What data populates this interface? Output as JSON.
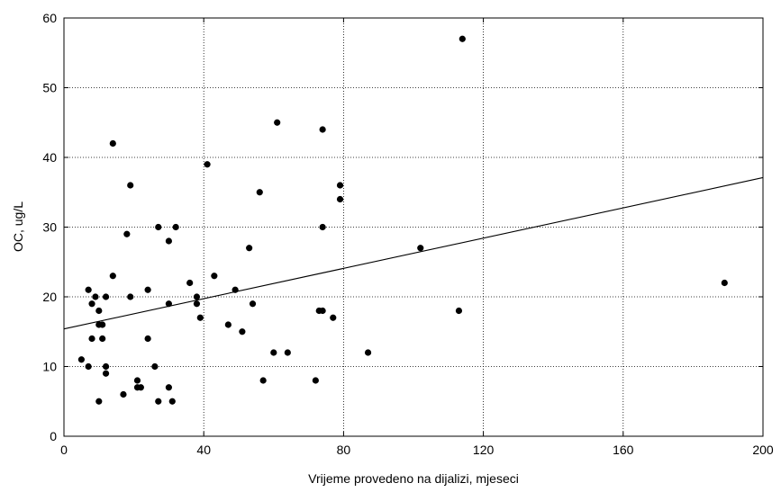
{
  "chart_data": {
    "type": "scatter",
    "xlabel": "Vrijeme provedeno na dijalizi,  mjeseci",
    "ylabel": "OC,  ug/L",
    "xlim": [
      0,
      200
    ],
    "ylim": [
      0,
      60
    ],
    "x_ticks": [
      0,
      40,
      80,
      120,
      160,
      200
    ],
    "y_ticks": [
      0,
      10,
      20,
      30,
      40,
      50,
      60
    ],
    "grid": true,
    "grid_style": "dotted",
    "series": [
      {
        "points": [
          [
            5,
            11
          ],
          [
            7,
            10
          ],
          [
            7,
            21
          ],
          [
            8,
            19
          ],
          [
            8,
            14
          ],
          [
            9,
            20
          ],
          [
            10,
            18
          ],
          [
            10,
            16
          ],
          [
            10,
            5
          ],
          [
            11,
            14
          ],
          [
            11,
            16
          ],
          [
            12,
            20
          ],
          [
            12,
            10
          ],
          [
            12,
            9
          ],
          [
            14,
            23
          ],
          [
            14,
            42
          ],
          [
            17,
            6
          ],
          [
            18,
            29
          ],
          [
            19,
            36
          ],
          [
            19,
            20
          ],
          [
            21,
            8
          ],
          [
            21,
            7
          ],
          [
            22,
            7
          ],
          [
            24,
            21
          ],
          [
            24,
            14
          ],
          [
            26,
            10
          ],
          [
            27,
            5
          ],
          [
            27,
            30
          ],
          [
            30,
            28
          ],
          [
            30,
            19
          ],
          [
            30,
            7
          ],
          [
            31,
            5
          ],
          [
            32,
            30
          ],
          [
            36,
            22
          ],
          [
            38,
            20
          ],
          [
            38,
            19
          ],
          [
            39,
            17
          ],
          [
            41,
            39
          ],
          [
            43,
            23
          ],
          [
            47,
            16
          ],
          [
            49,
            21
          ],
          [
            51,
            15
          ],
          [
            53,
            27
          ],
          [
            54,
            19
          ],
          [
            56,
            35
          ],
          [
            57,
            8
          ],
          [
            60,
            12
          ],
          [
            61,
            45
          ],
          [
            64,
            12
          ],
          [
            72,
            8
          ],
          [
            73,
            18
          ],
          [
            74,
            44
          ],
          [
            74,
            30
          ],
          [
            74,
            18
          ],
          [
            77,
            17
          ],
          [
            79,
            36
          ],
          [
            79,
            34
          ],
          [
            87,
            12
          ],
          [
            102,
            27
          ],
          [
            113,
            18
          ],
          [
            114,
            57
          ],
          [
            189,
            22
          ]
        ]
      }
    ],
    "fit_line": {
      "x": [
        0,
        200
      ],
      "y": [
        15.4,
        37.1
      ]
    }
  }
}
